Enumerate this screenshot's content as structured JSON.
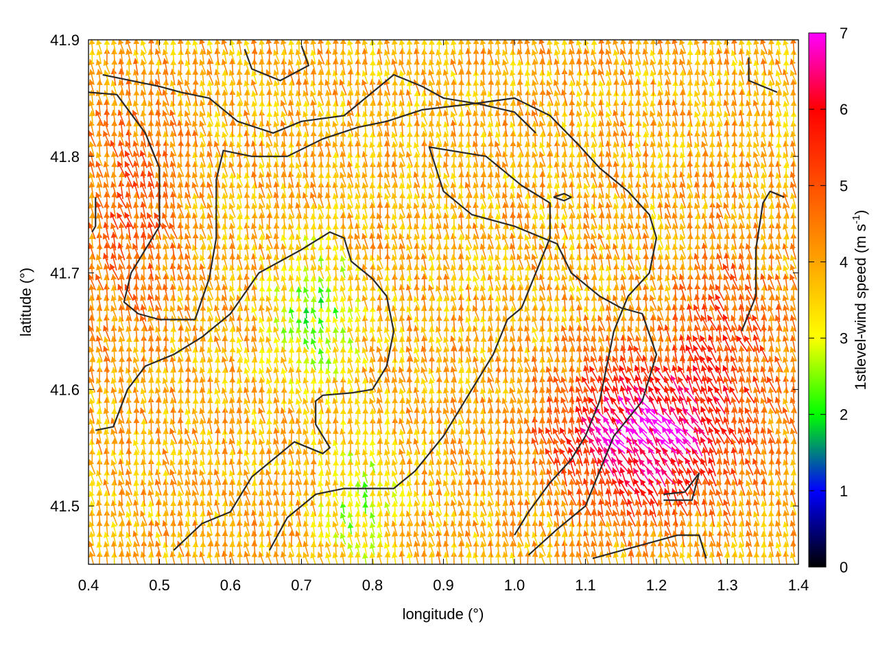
{
  "chart_data": {
    "type": "vector-field",
    "xlabel": "longitude (°)",
    "ylabel": "latitude (°)",
    "colorbar_label": "1stlevel-wind speed (m s",
    "colorbar_label_sup": "-1",
    "colorbar_label_end": ")",
    "xlim": [
      0.4,
      1.4
    ],
    "ylim": [
      41.45,
      41.9
    ],
    "xticks": [
      "0.4",
      "0.5",
      "0.6",
      "0.7",
      "0.8",
      "0.9",
      "1.0",
      "1.1",
      "1.2",
      "1.3",
      "1.4"
    ],
    "yticks": [
      "41.5",
      "41.6",
      "41.7",
      "41.8",
      "41.9"
    ],
    "ytick_values": [
      41.5,
      41.6,
      41.7,
      41.8,
      41.9
    ],
    "colorbar_range": [
      0,
      7
    ],
    "colorbar_ticks": [
      "0",
      "1",
      "2",
      "3",
      "4",
      "5",
      "6",
      "7"
    ],
    "colormap": [
      "#000000",
      "#0000ff",
      "#00ff00",
      "#ffff00",
      "#ffa500",
      "#ff5000",
      "#ff0000",
      "#ff00ff"
    ],
    "grid_step": [
      0.0104,
      0.0088
    ],
    "vector_field_model": {
      "background_speed": 3.9,
      "background_direction_deg_from_north": -10,
      "speed_modifiers": [
        {
          "center": [
            1.18,
            41.56
          ],
          "radius": [
            0.12,
            0.06
          ],
          "delta": 3.0
        },
        {
          "center": [
            1.3,
            41.64
          ],
          "radius": [
            0.08,
            0.08
          ],
          "delta": 1.2
        },
        {
          "center": [
            0.72,
            41.66
          ],
          "radius": [
            0.06,
            0.06
          ],
          "delta": -1.5
        },
        {
          "center": [
            0.78,
            41.5
          ],
          "radius": [
            0.05,
            0.05
          ],
          "delta": -1.3
        },
        {
          "center": [
            0.46,
            41.75
          ],
          "radius": [
            0.07,
            0.1
          ],
          "delta": 1.0
        }
      ]
    },
    "contours": [
      [
        [
          0.41,
          41.565
        ],
        [
          0.435,
          41.568
        ],
        [
          0.455,
          41.6
        ],
        [
          0.48,
          41.62
        ],
        [
          0.52,
          41.63
        ],
        [
          0.56,
          41.645
        ],
        [
          0.6,
          41.665
        ],
        [
          0.64,
          41.7
        ],
        [
          0.7,
          41.72
        ],
        [
          0.74,
          41.735
        ],
        [
          0.76,
          41.73
        ],
        [
          0.77,
          41.71
        ],
        [
          0.8,
          41.695
        ],
        [
          0.82,
          41.68
        ],
        [
          0.83,
          41.65
        ],
        [
          0.82,
          41.62
        ],
        [
          0.8,
          41.6
        ],
        [
          0.77,
          41.597
        ],
        [
          0.73,
          41.595
        ],
        [
          0.72,
          41.59
        ],
        [
          0.72,
          41.57
        ],
        [
          0.74,
          41.55
        ],
        [
          0.73,
          41.545
        ],
        [
          0.69,
          41.555
        ],
        [
          0.67,
          41.545
        ],
        [
          0.63,
          41.525
        ],
        [
          0.6,
          41.495
        ],
        [
          0.56,
          41.485
        ],
        [
          0.52,
          41.462
        ]
      ],
      [
        [
          0.655,
          41.462
        ],
        [
          0.68,
          41.49
        ],
        [
          0.72,
          41.51
        ],
        [
          0.76,
          41.515
        ],
        [
          0.83,
          41.515
        ],
        [
          0.86,
          41.53
        ],
        [
          0.9,
          41.56
        ],
        [
          0.94,
          41.6
        ],
        [
          0.97,
          41.63
        ],
        [
          0.99,
          41.66
        ],
        [
          1.01,
          41.67
        ],
        [
          1.03,
          41.7
        ],
        [
          1.05,
          41.73
        ],
        [
          1.05,
          41.76
        ],
        [
          1.01,
          41.775
        ],
        [
          0.96,
          41.8
        ],
        [
          0.88,
          41.808
        ],
        [
          0.9,
          41.77
        ],
        [
          0.94,
          41.75
        ],
        [
          1.0,
          41.74
        ],
        [
          1.06,
          41.725
        ],
        [
          1.08,
          41.7
        ],
        [
          1.12,
          41.68
        ],
        [
          1.15,
          41.67
        ],
        [
          1.18,
          41.665
        ],
        [
          1.2,
          41.63
        ],
        [
          1.18,
          41.59
        ],
        [
          1.14,
          41.56
        ],
        [
          1.12,
          41.53
        ],
        [
          1.1,
          41.5
        ],
        [
          1.06,
          41.48
        ],
        [
          1.02,
          41.458
        ]
      ],
      [
        [
          0.4,
          41.855
        ],
        [
          0.44,
          41.853
        ],
        [
          0.48,
          41.82
        ],
        [
          0.5,
          41.79
        ],
        [
          0.5,
          41.74
        ],
        [
          0.48,
          41.72
        ],
        [
          0.46,
          41.7
        ],
        [
          0.45,
          41.675
        ],
        [
          0.47,
          41.665
        ],
        [
          0.5,
          41.66
        ],
        [
          0.53,
          41.66
        ],
        [
          0.55,
          41.66
        ],
        [
          0.57,
          41.695
        ],
        [
          0.58,
          41.73
        ],
        [
          0.58,
          41.78
        ],
        [
          0.59,
          41.805
        ],
        [
          0.63,
          41.8
        ],
        [
          0.68,
          41.8
        ],
        [
          0.73,
          41.815
        ],
        [
          0.78,
          41.825
        ],
        [
          0.82,
          41.83
        ],
        [
          0.87,
          41.84
        ],
        [
          0.94,
          41.845
        ],
        [
          1.0,
          41.85
        ],
        [
          1.05,
          41.835
        ],
        [
          1.09,
          41.81
        ],
        [
          1.12,
          41.79
        ],
        [
          1.16,
          41.77
        ],
        [
          1.19,
          41.75
        ],
        [
          1.2,
          41.73
        ],
        [
          1.19,
          41.7
        ],
        [
          1.16,
          41.68
        ],
        [
          1.14,
          41.65
        ],
        [
          1.13,
          41.62
        ],
        [
          1.12,
          41.59
        ],
        [
          1.1,
          41.56
        ],
        [
          1.08,
          41.54
        ],
        [
          1.05,
          41.52
        ],
        [
          1.02,
          41.495
        ],
        [
          1.0,
          41.475
        ]
      ],
      [
        [
          0.42,
          41.87
        ],
        [
          0.5,
          41.86
        ],
        [
          0.53,
          41.855
        ],
        [
          0.57,
          41.85
        ],
        [
          0.61,
          41.83
        ],
        [
          0.66,
          41.82
        ],
        [
          0.7,
          41.83
        ],
        [
          0.76,
          41.835
        ],
        [
          0.8,
          41.855
        ],
        [
          0.83,
          41.87
        ],
        [
          0.87,
          41.86
        ],
        [
          0.9,
          41.85
        ],
        [
          0.95,
          41.845
        ],
        [
          1.0,
          41.838
        ],
        [
          1.03,
          41.82
        ]
      ],
      [
        [
          0.62,
          41.892
        ],
        [
          0.63,
          41.875
        ],
        [
          0.67,
          41.865
        ],
        [
          0.71,
          41.878
        ],
        [
          0.7,
          41.895
        ]
      ],
      [
        [
          1.21,
          41.51
        ],
        [
          1.24,
          41.512
        ],
        [
          1.26,
          41.528
        ],
        [
          1.25,
          41.505
        ],
        [
          1.21,
          41.505
        ]
      ],
      [
        [
          1.33,
          41.885
        ],
        [
          1.33,
          41.865
        ],
        [
          1.37,
          41.855
        ]
      ],
      [
        [
          1.055,
          41.765
        ],
        [
          1.07,
          41.768
        ],
        [
          1.08,
          41.765
        ],
        [
          1.07,
          41.762
        ],
        [
          1.055,
          41.765
        ]
      ],
      [
        [
          1.11,
          41.455
        ],
        [
          1.17,
          41.465
        ],
        [
          1.23,
          41.475
        ],
        [
          1.26,
          41.475
        ],
        [
          1.27,
          41.455
        ]
      ],
      [
        [
          1.32,
          41.65
        ],
        [
          1.34,
          41.68
        ],
        [
          1.34,
          41.72
        ],
        [
          1.35,
          41.76
        ],
        [
          1.36,
          41.77
        ],
        [
          1.38,
          41.765
        ]
      ],
      [
        [
          0.41,
          41.765
        ],
        [
          0.41,
          41.74
        ],
        [
          0.405,
          41.735
        ]
      ]
    ]
  }
}
